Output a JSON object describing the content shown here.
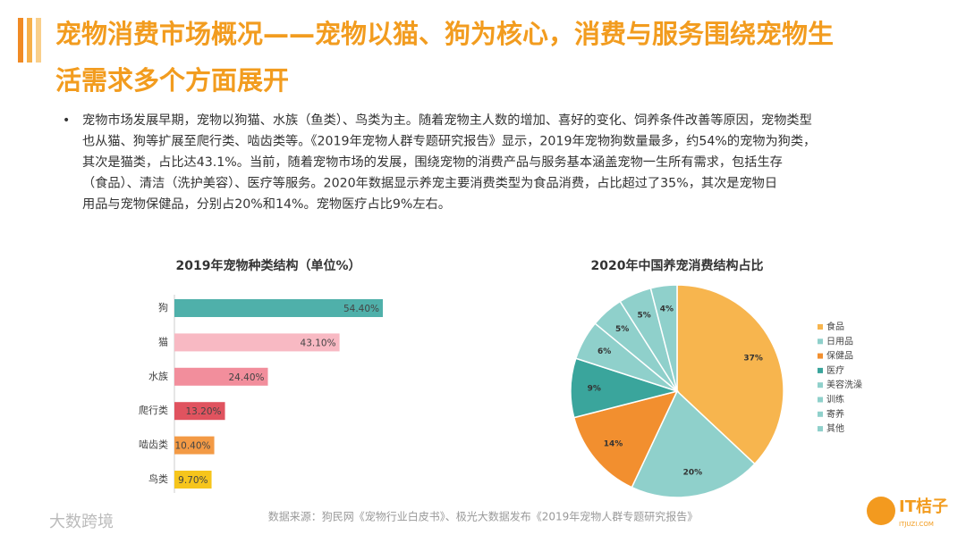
{
  "header": {
    "title_lines": [
      "宠物消费市场概况——宠物以猫、狗为核心，消费与服务围绕宠物生",
      "活需求多个方面展开"
    ]
  },
  "body": {
    "bullet": "•",
    "lines": [
      "宠物市场发展早期，宠物以狗猫、水族（鱼类）、鸟类为主。随着宠物主人数的增加、喜好的变化、饲养条件改善等原因，宠物类型",
      "也从猫、狗等扩展至爬行类、啮齿类等。《2019年宠物人群专题研究报告》显示，2019年宠物狗数量最多，约54%的宠物为狗类，",
      "其次是猫类，占比达43.1%。当前，随着宠物市场的发展，围绕宠物的消费产品与服务基本涵盖宠物一生所有需求，包括生存",
      "（食品）、清洁（洗护美容）、医疗等服务。2020年数据显示养宠主要消费类型为食品消费，占比超过了35%，其次是宠物日",
      "用品与宠物保健品，分别占20%和14%。宠物医疗占比9%左右。"
    ]
  },
  "chart_data": [
    {
      "type": "bar",
      "title": "2019年宠物种类结构（单位%）",
      "categories": [
        "狗",
        "猫",
        "水族",
        "爬行类",
        "啮齿类",
        "鸟类"
      ],
      "values": [
        54.4,
        43.1,
        24.4,
        13.2,
        10.4,
        9.7
      ],
      "value_labels": [
        "54.40%",
        "43.10%",
        "24.40%",
        "13.20%",
        "10.40%",
        "9.70%"
      ],
      "colors": [
        "#4fb0aa",
        "#f8b9c3",
        "#f28e9c",
        "#e0535f",
        "#f39a45",
        "#f6c51c"
      ]
    },
    {
      "type": "pie",
      "title": "2020年中国养宠消费结构占比",
      "categories": [
        "食品",
        "日用品",
        "保健品",
        "医疗",
        "美容洗澡",
        "训练",
        "寄养",
        "其他"
      ],
      "values": [
        37,
        20,
        14,
        9,
        6,
        5,
        5,
        4
      ],
      "value_labels": [
        "37%",
        "20%",
        "14%",
        "9%",
        "6%",
        "5%",
        "5%",
        "4%"
      ],
      "colors": [
        "#f7b54e",
        "#8fd0cb",
        "#f28f2f",
        "#3aa59c",
        "#8fd0cb",
        "#8fd0cb",
        "#8fd0cb",
        "#8fd0cb"
      ]
    }
  ],
  "footer": {
    "source": "数据来源：狗民网《宠物行业白皮书》、极光大数据发布《2019年宠物人群专题研究报告》",
    "logo": "IT桔子",
    "logo_url": "ITJUZI.COM",
    "watermark": "大数跨境"
  }
}
